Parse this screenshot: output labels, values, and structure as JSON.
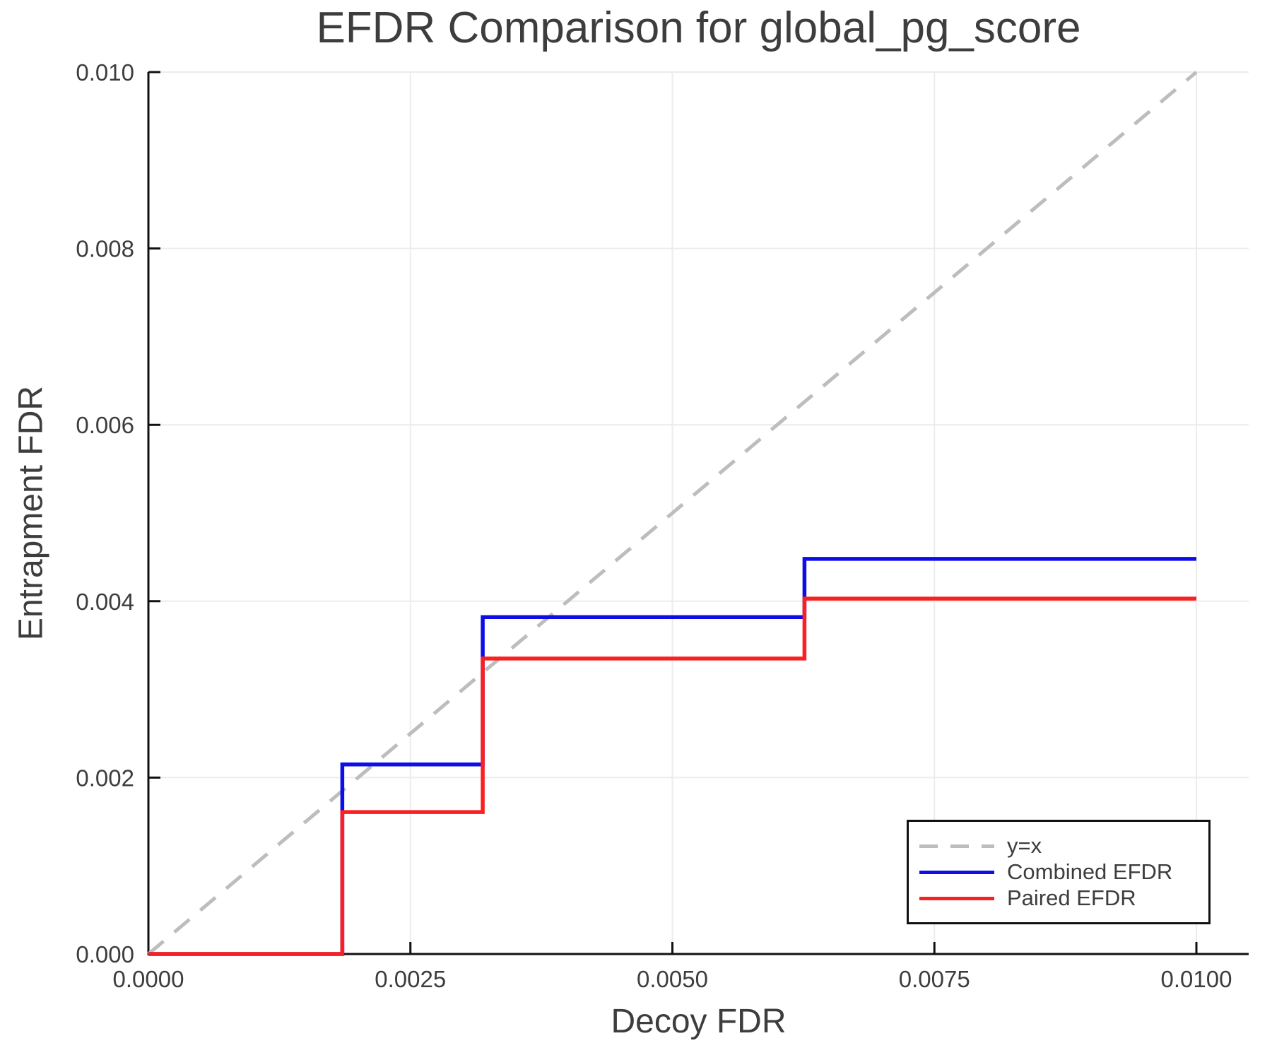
{
  "chart_data": {
    "type": "line",
    "subtype": "step",
    "title": "EFDR Comparison for global_pg_score",
    "xlabel": "Decoy FDR",
    "ylabel": "Entrapment FDR",
    "xlim": [
      0.0,
      0.01
    ],
    "ylim": [
      0.0,
      0.01
    ],
    "grid": true,
    "x_ticks": {
      "values": [
        0.0,
        0.0025,
        0.005,
        0.0075,
        0.01
      ],
      "labels": [
        "0.0000",
        "0.0025",
        "0.0050",
        "0.0075",
        "0.0100"
      ]
    },
    "y_ticks": {
      "values": [
        0.0,
        0.002,
        0.004,
        0.006,
        0.008,
        0.01
      ],
      "labels": [
        "0.000",
        "0.002",
        "0.004",
        "0.006",
        "0.008",
        "0.010"
      ]
    },
    "reference_line": {
      "label": "y=x",
      "from": [
        0.0,
        0.0
      ],
      "to": [
        0.01,
        0.01
      ],
      "style": "dashed",
      "color": "#bdbdbd"
    },
    "series": [
      {
        "name": "Combined EFDR",
        "color": "#0d0de8",
        "step": "pre",
        "x": [
          0.0,
          0.00185,
          0.00319,
          0.00626,
          0.01
        ],
        "y": [
          0.0,
          0.00215,
          0.00382,
          0.00448,
          0.00448
        ]
      },
      {
        "name": "Paired EFDR",
        "color": "#fb2020",
        "step": "pre",
        "x": [
          0.0,
          0.00185,
          0.00319,
          0.00626,
          0.01
        ],
        "y": [
          0.0,
          0.00161,
          0.00335,
          0.00403,
          0.00403
        ]
      }
    ],
    "legend": {
      "position": "lower-right",
      "entries": [
        {
          "label": "y=x",
          "color": "#bdbdbd",
          "dash": true
        },
        {
          "label": "Combined EFDR",
          "color": "#0d0de8",
          "dash": false
        },
        {
          "label": "Paired EFDR",
          "color": "#fb2020",
          "dash": false
        }
      ]
    },
    "colors": {
      "grid": "#ececec",
      "spine": "#111111",
      "text": "#3d3d3d"
    }
  }
}
